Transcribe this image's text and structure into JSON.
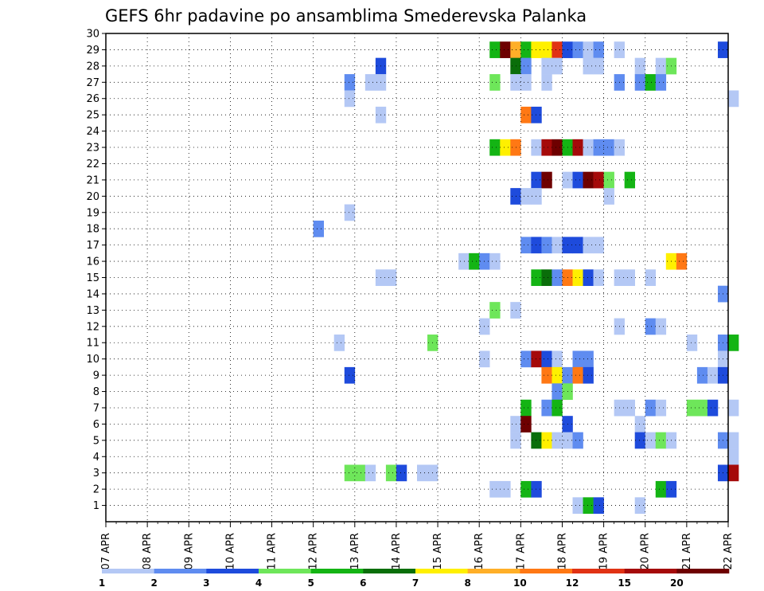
{
  "chart_data": {
    "type": "heatmap",
    "title": "GEFS 6hr padavine po ansamblima Smederevska Palanka",
    "y_ticks": [
      "1",
      "2",
      "3",
      "4",
      "5",
      "6",
      "7",
      "8",
      "9",
      "10",
      "11",
      "12",
      "13",
      "14",
      "15",
      "16",
      "17",
      "18",
      "19",
      "20",
      "21",
      "22",
      "23",
      "24",
      "25",
      "26",
      "27",
      "28",
      "29",
      "30"
    ],
    "ylim": [
      0,
      30
    ],
    "x_ticks": [
      "07 APR",
      "08 APR",
      "09 APR",
      "10 APR",
      "11 APR",
      "12 APR",
      "13 APR",
      "14 APR",
      "15 APR",
      "16 APR",
      "17 APR",
      "18 APR",
      "19 APR",
      "20 APR",
      "21 APR",
      "22 APR"
    ],
    "xlim_days": [
      0,
      15
    ],
    "step_hours": 6,
    "grid": true,
    "legend": {
      "position": "bottom",
      "labels": [
        "1",
        "2",
        "3",
        "4",
        "5",
        "6",
        "7",
        "8",
        "10",
        "12",
        "15",
        "20"
      ],
      "colors": [
        "#b4c8f5",
        "#5f8cf0",
        "#1e4bdc",
        "#6ee65a",
        "#14b414",
        "#0a6e0a",
        "#fff000",
        "#ffaf28",
        "#ff7814",
        "#e13214",
        "#a50a0a",
        "#6e0000"
      ]
    },
    "thresholds": [
      1,
      2,
      3,
      4,
      5,
      6,
      7,
      8,
      10,
      12,
      15,
      20
    ],
    "cells": [
      [
        29,
        37,
        5
      ],
      [
        29,
        38,
        20
      ],
      [
        29,
        39,
        8
      ],
      [
        29,
        40,
        5
      ],
      [
        29,
        41,
        7
      ],
      [
        29,
        42,
        7
      ],
      [
        29,
        43,
        12
      ],
      [
        29,
        44,
        3
      ],
      [
        29,
        45,
        2
      ],
      [
        29,
        46,
        1
      ],
      [
        29,
        47,
        2
      ],
      [
        29,
        49,
        1
      ],
      [
        29,
        59,
        3
      ],
      [
        28,
        26,
        3
      ],
      [
        28,
        39,
        6
      ],
      [
        28,
        40,
        2
      ],
      [
        28,
        42,
        1
      ],
      [
        28,
        43,
        1
      ],
      [
        28,
        46,
        1
      ],
      [
        28,
        47,
        1
      ],
      [
        28,
        51,
        1
      ],
      [
        28,
        53,
        1
      ],
      [
        28,
        54,
        4
      ],
      [
        27,
        23,
        2
      ],
      [
        27,
        25,
        1
      ],
      [
        27,
        26,
        1
      ],
      [
        27,
        37,
        4
      ],
      [
        27,
        39,
        1
      ],
      [
        27,
        40,
        1
      ],
      [
        27,
        42,
        1
      ],
      [
        27,
        49,
        2
      ],
      [
        27,
        51,
        2
      ],
      [
        27,
        52,
        5
      ],
      [
        27,
        53,
        2
      ],
      [
        26,
        23,
        1
      ],
      [
        26,
        60,
        1
      ],
      [
        25,
        26,
        1
      ],
      [
        25,
        40,
        10
      ],
      [
        25,
        41,
        3
      ],
      [
        23,
        37,
        5
      ],
      [
        23,
        38,
        7
      ],
      [
        23,
        39,
        10
      ],
      [
        23,
        41,
        1
      ],
      [
        23,
        42,
        15
      ],
      [
        23,
        43,
        20
      ],
      [
        23,
        44,
        5
      ],
      [
        23,
        45,
        15
      ],
      [
        23,
        46,
        1
      ],
      [
        23,
        47,
        2
      ],
      [
        23,
        48,
        2
      ],
      [
        23,
        49,
        1
      ],
      [
        21,
        41,
        3
      ],
      [
        21,
        42,
        20
      ],
      [
        21,
        44,
        1
      ],
      [
        21,
        45,
        3
      ],
      [
        21,
        46,
        20
      ],
      [
        21,
        47,
        15
      ],
      [
        21,
        48,
        4
      ],
      [
        21,
        50,
        5
      ],
      [
        20,
        39,
        3
      ],
      [
        20,
        40,
        1
      ],
      [
        20,
        41,
        1
      ],
      [
        20,
        48,
        1
      ],
      [
        19,
        23,
        1
      ],
      [
        18,
        20,
        2
      ],
      [
        17,
        40,
        2
      ],
      [
        17,
        41,
        3
      ],
      [
        17,
        42,
        2
      ],
      [
        17,
        43,
        1
      ],
      [
        17,
        44,
        3
      ],
      [
        17,
        45,
        3
      ],
      [
        17,
        46,
        1
      ],
      [
        17,
        47,
        1
      ],
      [
        16,
        34,
        1
      ],
      [
        16,
        35,
        5
      ],
      [
        16,
        36,
        2
      ],
      [
        16,
        37,
        1
      ],
      [
        16,
        54,
        7
      ],
      [
        16,
        55,
        10
      ],
      [
        15,
        26,
        1
      ],
      [
        15,
        27,
        1
      ],
      [
        15,
        41,
        5
      ],
      [
        15,
        42,
        6
      ],
      [
        15,
        43,
        2
      ],
      [
        15,
        44,
        10
      ],
      [
        15,
        45,
        7
      ],
      [
        15,
        46,
        3
      ],
      [
        15,
        47,
        1
      ],
      [
        15,
        49,
        1
      ],
      [
        15,
        50,
        1
      ],
      [
        15,
        52,
        1
      ],
      [
        14,
        59,
        2
      ],
      [
        13,
        37,
        4
      ],
      [
        13,
        39,
        1
      ],
      [
        12,
        36,
        1
      ],
      [
        12,
        49,
        1
      ],
      [
        12,
        52,
        2
      ],
      [
        12,
        53,
        1
      ],
      [
        11,
        22,
        1
      ],
      [
        11,
        31,
        4
      ],
      [
        11,
        56,
        1
      ],
      [
        11,
        59,
        2
      ],
      [
        11,
        60,
        5
      ],
      [
        10,
        36,
        1
      ],
      [
        10,
        40,
        2
      ],
      [
        10,
        41,
        15
      ],
      [
        10,
        42,
        3
      ],
      [
        10,
        43,
        1
      ],
      [
        10,
        45,
        2
      ],
      [
        10,
        46,
        2
      ],
      [
        10,
        59,
        1
      ],
      [
        9,
        23,
        3
      ],
      [
        9,
        42,
        10
      ],
      [
        9,
        43,
        7
      ],
      [
        9,
        44,
        2
      ],
      [
        9,
        45,
        10
      ],
      [
        9,
        46,
        3
      ],
      [
        9,
        57,
        2
      ],
      [
        9,
        58,
        1
      ],
      [
        9,
        59,
        3
      ],
      [
        8,
        43,
        2
      ],
      [
        8,
        44,
        4
      ],
      [
        7,
        40,
        5
      ],
      [
        7,
        42,
        2
      ],
      [
        7,
        43,
        5
      ],
      [
        7,
        49,
        1
      ],
      [
        7,
        50,
        1
      ],
      [
        7,
        52,
        2
      ],
      [
        7,
        53,
        1
      ],
      [
        7,
        56,
        4
      ],
      [
        7,
        57,
        4
      ],
      [
        7,
        58,
        3
      ],
      [
        7,
        60,
        1
      ],
      [
        6,
        39,
        1
      ],
      [
        6,
        40,
        20
      ],
      [
        6,
        44,
        3
      ],
      [
        6,
        51,
        1
      ],
      [
        5,
        39,
        1
      ],
      [
        5,
        41,
        6
      ],
      [
        5,
        42,
        7
      ],
      [
        5,
        43,
        1
      ],
      [
        5,
        44,
        1
      ],
      [
        5,
        45,
        2
      ],
      [
        5,
        51,
        3
      ],
      [
        5,
        52,
        1
      ],
      [
        5,
        53,
        4
      ],
      [
        5,
        54,
        1
      ],
      [
        5,
        59,
        2
      ],
      [
        5,
        60,
        1
      ],
      [
        4,
        60,
        1
      ],
      [
        3,
        23,
        4
      ],
      [
        3,
        24,
        4
      ],
      [
        3,
        25,
        1
      ],
      [
        3,
        27,
        4
      ],
      [
        3,
        28,
        3
      ],
      [
        3,
        30,
        1
      ],
      [
        3,
        31,
        1
      ],
      [
        3,
        59,
        3
      ],
      [
        3,
        60,
        15
      ],
      [
        2,
        37,
        1
      ],
      [
        2,
        38,
        1
      ],
      [
        2,
        40,
        5
      ],
      [
        2,
        41,
        3
      ],
      [
        2,
        53,
        5
      ],
      [
        2,
        54,
        3
      ],
      [
        1,
        45,
        1
      ],
      [
        1,
        46,
        5
      ],
      [
        1,
        47,
        3
      ],
      [
        1,
        51,
        1
      ]
    ]
  }
}
